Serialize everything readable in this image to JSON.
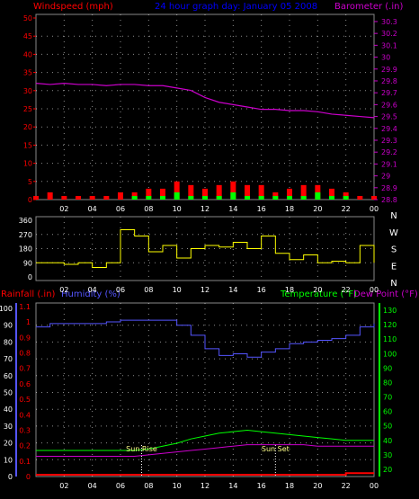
{
  "header": {
    "left_label": "Windspeed (mph)",
    "center_label": "24 hour graph day:  January 05 2008",
    "right_label": "Barometer (.in)"
  },
  "colors": {
    "background": "#000000",
    "grid": "#ffffff",
    "wind_axis": "#ff0000",
    "barometer": "#cc00cc",
    "wind_gust": "#ff0000",
    "wind_avg": "#00ff00",
    "wind_speed": "#ffffff",
    "direction": "#ffff00",
    "humidity": "#5555ff",
    "rainfall": "#ff0000",
    "temperature": "#00ff00",
    "dewpoint": "#cc00cc",
    "sun_marker": "#ffffff",
    "title": "#0000ff"
  },
  "panel3_labels": {
    "rain": "Rainfall (.in)",
    "humidity": "Humidity (%)",
    "temperature": "Temperature (°F)",
    "dewpoint": "Dew Point (°F)",
    "sunrise": "Sun Rise",
    "sunset": "Sun Set"
  },
  "chart_data": [
    {
      "type": "line",
      "x_ticks": [
        "02",
        "04",
        "06",
        "08",
        "10",
        "12",
        "14",
        "16",
        "18",
        "20",
        "22",
        "00"
      ],
      "left_axis": {
        "ticks": [
          "0",
          "5",
          "10",
          "15",
          "20",
          "25",
          "30",
          "35",
          "40",
          "45",
          "50"
        ],
        "ylim": [
          0,
          50
        ]
      },
      "right_axis": {
        "ticks": [
          "28.8",
          "28.9",
          "29",
          "29.1",
          "29.2",
          "29.3",
          "29.4",
          "29.5",
          "29.6",
          "29.7",
          "29.8",
          "29.9",
          "30",
          "30.1",
          "30.2",
          "30.3"
        ],
        "ylim": [
          28.8,
          30.33
        ]
      },
      "grid": true,
      "series": [
        {
          "name": "Barometer",
          "axis": "right",
          "x": [
            0,
            1,
            2,
            3,
            4,
            5,
            6,
            7,
            8,
            9,
            10,
            11,
            12,
            13,
            14,
            15,
            16,
            17,
            18,
            19,
            20,
            21,
            22,
            23,
            24
          ],
          "values": [
            29.78,
            29.77,
            29.78,
            29.77,
            29.77,
            29.76,
            29.77,
            29.77,
            29.76,
            29.76,
            29.74,
            29.72,
            29.66,
            29.62,
            29.6,
            29.58,
            29.56,
            29.56,
            29.55,
            29.55,
            29.54,
            29.52,
            29.51,
            29.5,
            29.49
          ]
        },
        {
          "name": "Wind Gust",
          "axis": "left",
          "x": [
            0,
            1,
            2,
            3,
            4,
            5,
            6,
            7,
            8,
            9,
            10,
            11,
            12,
            13,
            14,
            15,
            16,
            17,
            18,
            19,
            20,
            21,
            22,
            23,
            24
          ],
          "values": [
            1,
            2,
            1,
            1,
            1,
            1,
            2,
            2,
            3,
            3,
            5,
            4,
            3,
            4,
            5,
            4,
            4,
            2,
            3,
            4,
            4,
            3,
            2,
            1,
            1
          ]
        },
        {
          "name": "Wind Average",
          "axis": "left",
          "x": [
            0,
            1,
            2,
            3,
            4,
            5,
            6,
            7,
            8,
            9,
            10,
            11,
            12,
            13,
            14,
            15,
            16,
            17,
            18,
            19,
            20,
            21,
            22,
            23,
            24
          ],
          "values": [
            0,
            0,
            0,
            0,
            0,
            0,
            0,
            1,
            1,
            1,
            2,
            1,
            1,
            1,
            2,
            1,
            1,
            1,
            1,
            1,
            2,
            1,
            1,
            0,
            0
          ]
        }
      ]
    },
    {
      "type": "line",
      "x_ticks": [
        "02",
        "04",
        "06",
        "08",
        "10",
        "12",
        "14",
        "16",
        "18",
        "20",
        "22",
        "00"
      ],
      "left_axis": {
        "ticks": [
          "0",
          "90",
          "180",
          "270",
          "360"
        ],
        "ylim": [
          0,
          360
        ]
      },
      "right_axis": {
        "ticks": [
          "N",
          "W",
          "S",
          "E",
          "N"
        ]
      },
      "grid": true,
      "series": [
        {
          "name": "Wind Direction",
          "axis": "left",
          "x": [
            0,
            1,
            2,
            3,
            4,
            5,
            6,
            7,
            8,
            9,
            10,
            11,
            12,
            13,
            14,
            15,
            16,
            17,
            18,
            19,
            20,
            21,
            22,
            23,
            24
          ],
          "values": [
            90,
            90,
            80,
            90,
            60,
            90,
            300,
            260,
            160,
            200,
            120,
            180,
            200,
            190,
            220,
            180,
            260,
            150,
            110,
            140,
            90,
            100,
            90,
            200,
            90
          ]
        }
      ]
    },
    {
      "type": "line",
      "x_ticks": [
        "02",
        "04",
        "06",
        "08",
        "10",
        "12",
        "14",
        "16",
        "18",
        "20",
        "22",
        "00"
      ],
      "rain_axis": {
        "ticks": [
          "0",
          "0.1",
          "0.2",
          "0.3",
          "0.4",
          "0.5",
          "0.6",
          "0.7",
          "0.8",
          "0.9",
          "1",
          "1.1"
        ]
      },
      "humidity_axis": {
        "ticks": [
          "0",
          "10",
          "20",
          "30",
          "40",
          "50",
          "60",
          "70",
          "80",
          "90",
          "100"
        ],
        "ylim": [
          0,
          100
        ]
      },
      "temperature_axis": {
        "ticks": [
          "20",
          "30",
          "40",
          "50",
          "60",
          "70",
          "80",
          "90",
          "100",
          "110",
          "120",
          "130"
        ],
        "ylim": [
          15,
          135
        ]
      },
      "grid": true,
      "sunrise_hour": 7.5,
      "sunset_hour": 17,
      "series": [
        {
          "name": "Humidity",
          "axis": "humidity",
          "x": [
            0,
            1,
            2,
            3,
            4,
            5,
            6,
            7,
            8,
            9,
            10,
            11,
            12,
            13,
            14,
            15,
            16,
            17,
            18,
            19,
            20,
            21,
            22,
            23,
            24
          ],
          "values": [
            89,
            91,
            91,
            91,
            91,
            92,
            93,
            93,
            93,
            93,
            90,
            84,
            76,
            72,
            73,
            71,
            74,
            76,
            79,
            80,
            81,
            82,
            84,
            89,
            91
          ]
        },
        {
          "name": "Temperature",
          "axis": "temperature",
          "x": [
            0,
            1,
            2,
            3,
            4,
            5,
            6,
            7,
            8,
            9,
            10,
            11,
            12,
            13,
            14,
            15,
            16,
            17,
            18,
            19,
            20,
            21,
            22,
            23,
            24
          ],
          "values": [
            33,
            33,
            33,
            33,
            33,
            33,
            33,
            33,
            34,
            36,
            38,
            41,
            43,
            45,
            46,
            47,
            46,
            45,
            44,
            43,
            42,
            41,
            40,
            40,
            40
          ]
        },
        {
          "name": "Dew Point",
          "axis": "temperature",
          "x": [
            0,
            1,
            2,
            3,
            4,
            5,
            6,
            7,
            8,
            9,
            10,
            11,
            12,
            13,
            14,
            15,
            16,
            17,
            18,
            19,
            20,
            21,
            22,
            23,
            24
          ],
          "values": [
            29,
            29,
            29,
            29,
            29,
            29,
            29,
            29,
            30,
            31,
            32,
            33,
            34,
            35,
            36,
            37,
            37,
            37,
            37,
            37,
            36,
            36,
            36,
            36,
            36
          ]
        },
        {
          "name": "Rainfall",
          "axis": "rain",
          "x": [
            0,
            1,
            2,
            3,
            4,
            5,
            6,
            7,
            8,
            9,
            10,
            11,
            12,
            13,
            14,
            15,
            16,
            17,
            18,
            19,
            20,
            21,
            22,
            23,
            24
          ],
          "values": [
            0,
            0,
            0,
            0,
            0,
            0,
            0,
            0,
            0,
            0,
            0,
            0,
            0,
            0,
            0,
            0,
            0,
            0,
            0,
            0,
            0,
            0,
            0.01,
            0.01,
            0.01
          ]
        }
      ]
    }
  ]
}
